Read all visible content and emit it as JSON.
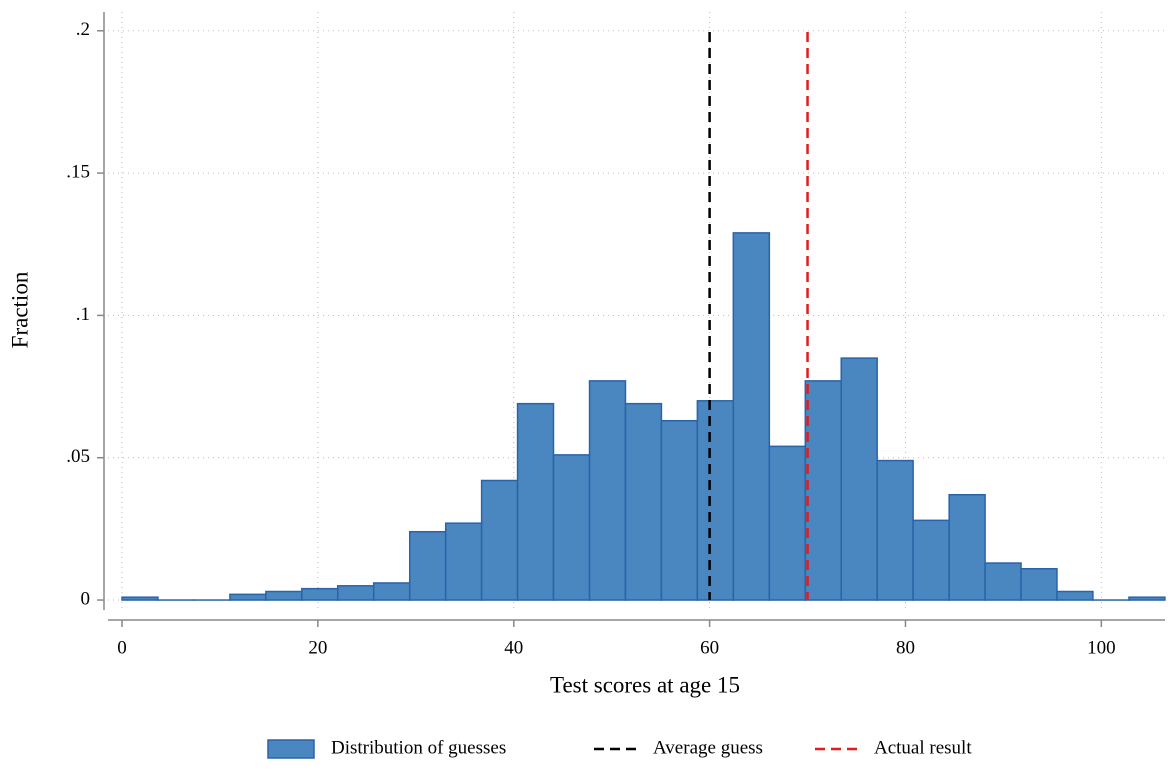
{
  "chart_data": {
    "type": "histogram",
    "xlabel": "Test scores at age 15",
    "ylabel": "Fraction",
    "bins": [
      0,
      3.67,
      7.34,
      11.02,
      14.69,
      18.36,
      22.03,
      25.7,
      29.38,
      33.05,
      36.72,
      40.39,
      44.06,
      47.74,
      51.41,
      55.08,
      58.75,
      62.42,
      66.1,
      69.77,
      73.44,
      77.11,
      80.78,
      84.46,
      88.13,
      91.8,
      95.47,
      99.14,
      102.82,
      106.49
    ],
    "series": [
      {
        "name": "Distribution of guesses",
        "color": "#4a86c0",
        "edge_color": "#2a64a8",
        "values": [
          0.001,
          0,
          0,
          0.002,
          0.003,
          0.004,
          0.005,
          0.006,
          0.024,
          0.027,
          0.042,
          0.069,
          0.051,
          0.077,
          0.069,
          0.063,
          0.07,
          0.129,
          0.054,
          0.077,
          0.085,
          0.049,
          0.028,
          0.037,
          0.013,
          0.011,
          0.003,
          0,
          0.001
        ]
      }
    ],
    "lines": [
      {
        "name": "Average guess",
        "x": 60,
        "color": "#000000"
      },
      {
        "name": "Actual result",
        "x": 70,
        "color": "#e41a1c"
      }
    ],
    "xlim": [
      -1.43,
      106.5
    ],
    "ylim": [
      -0.0035,
      0.2066
    ],
    "xticks": [
      0,
      20,
      40,
      60,
      80,
      100
    ],
    "yticks": [
      0,
      {
        "value": 0.05,
        "label": ".05"
      },
      {
        "value": 0.1,
        "label": ".1"
      },
      {
        "value": 0.15,
        "label": ".15"
      },
      {
        "value": 0.2,
        "label": ".2"
      }
    ],
    "grid": true
  }
}
